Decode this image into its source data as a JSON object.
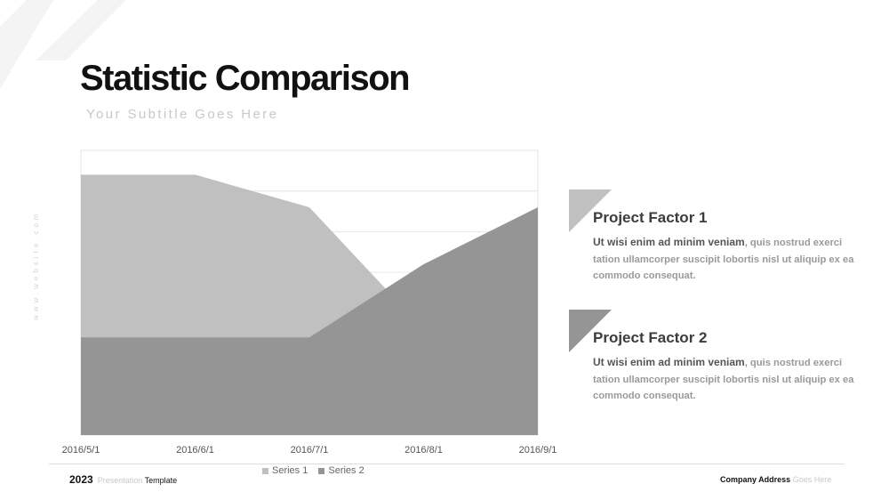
{
  "slide": {
    "title": "Statistic Comparison",
    "subtitle": "Your Subtitle Goes Here",
    "vertical_text": "www.website.com"
  },
  "chart_data": {
    "type": "area",
    "categories": [
      "2016/5/1",
      "2016/6/1",
      "2016/7/1",
      "2016/8/1",
      "2016/9/1"
    ],
    "series": [
      {
        "name": "Series 1",
        "values": [
          32,
          32,
          28,
          13,
          15
        ],
        "color": "#c0c0c0"
      },
      {
        "name": "Series 2",
        "values": [
          12,
          12,
          12,
          21,
          28
        ],
        "color": "#959595"
      }
    ],
    "ylim": [
      0,
      35
    ],
    "grid": true,
    "legend": "bottom"
  },
  "factors": [
    {
      "title": "Project Factor 1",
      "lead": "Ut wisi enim ad minim veniam",
      "body": ", quis nostrud exerci tation ullamcorper suscipit lobortis nisl ut aliquip ex ea commodo consequat.",
      "color": "#c0c0c0"
    },
    {
      "title": "Project Factor 2",
      "lead": "Ut wisi enim ad minim veniam",
      "body": ", quis nostrud exerci tation ullamcorper suscipit lobortis nisl ut aliquip ex ea commodo consequat.",
      "color": "#959595"
    }
  ],
  "footer": {
    "year": "2023",
    "presentation": "Presentation",
    "template": "Template",
    "company": "Company Address",
    "goes_here": "Goes Here"
  }
}
